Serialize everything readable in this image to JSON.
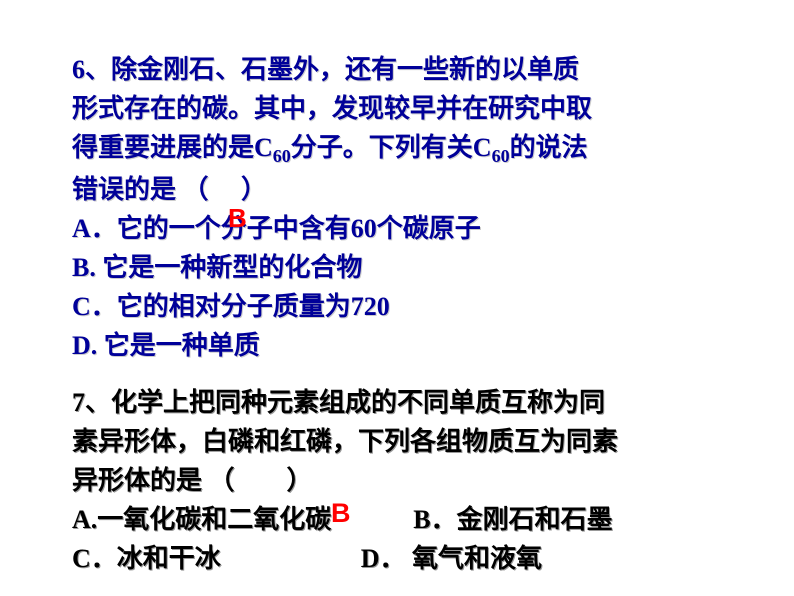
{
  "colors": {
    "q6_text": "#000099",
    "q7_text": "#000000",
    "answer": "#ff0000",
    "shadow_light": "#cccccc",
    "shadow_dark": "#999999",
    "background": "#ffffff"
  },
  "typography": {
    "base_fontsize": 26,
    "sub_fontsize": 18,
    "line_height": 1.5,
    "weight": "bold",
    "family": "SimSun"
  },
  "q6": {
    "line1": "6、除金刚石、石墨外，还有一些新的以单质",
    "line2": "形式存在的碳。其中，发现较早并在研究中取",
    "line3a": "得重要进展的是C",
    "line3_sub1": "60",
    "line3b": "分子。下列有关C",
    "line3_sub2": "60",
    "line3c": "的说法",
    "line4": "错误的是 （　 ）",
    "optA": "A．它的一个分子中含有60个碳原子",
    "optB": "B. 它是一种新型的化合物",
    "optC": "C．它的相对分子质量为720",
    "optD": "D. 它是一种单质",
    "answer": "B"
  },
  "q7": {
    "line1": "7、化学上把同种元素组成的不同单质互称为同",
    "line2": "素异形体，白磷和红磷，下列各组物质互为同素",
    "line3": "异形体的是 （　　）",
    "optA": "A.一氧化碳和二氧化碳",
    "optB": "B．金刚石和石墨",
    "optC": "C．冰和干冰",
    "optD": "D． 氧气和液氧",
    "answer": "B"
  }
}
